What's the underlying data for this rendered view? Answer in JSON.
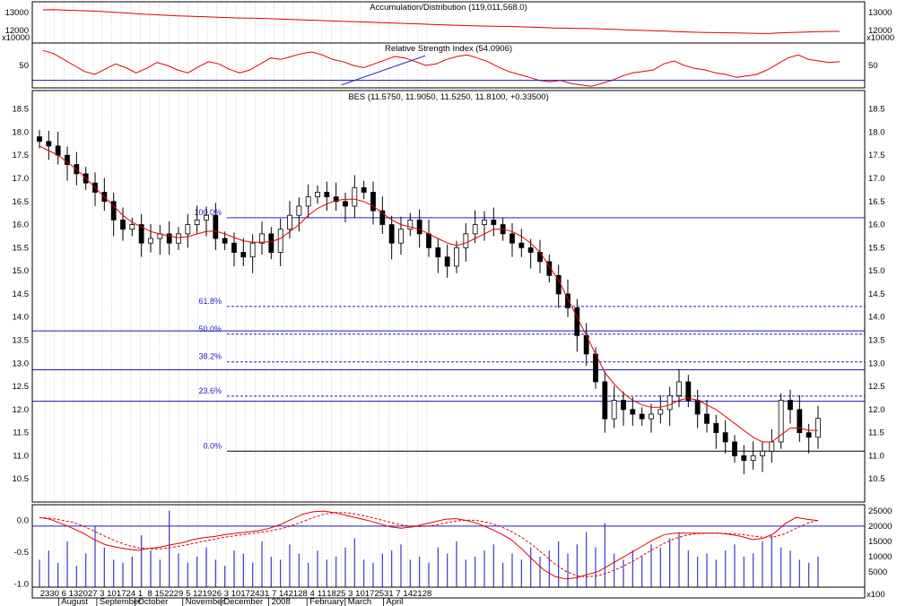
{
  "chart_data": {
    "type": "candlestick",
    "colors": {
      "grid": "#b0b0b0",
      "border": "#000000",
      "red_line": "#e00000",
      "blue_line": "#1a1ab0",
      "fib_blue": "#2020c0",
      "candle_up_fill": "#ffffff",
      "candle_down_fill": "#000000"
    },
    "panels": {
      "ad": {
        "title": "Accumulation/Distribution (119,011,568.0)",
        "ticks": [
          13000,
          12000
        ],
        "tick_labels": [
          "13000",
          "12000"
        ],
        "scale_label": "x10000",
        "ylim": [
          11300,
          13600
        ],
        "values": [
          13150,
          13160,
          13140,
          13120,
          13100,
          13080,
          13050,
          13020,
          12980,
          12940,
          12900,
          12880,
          12850,
          12820,
          12800,
          12780,
          12760,
          12740,
          12720,
          12700,
          12690,
          12680,
          12660,
          12640,
          12620,
          12600,
          12580,
          12560,
          12540,
          12520,
          12500,
          12480,
          12460,
          12440,
          12420,
          12400,
          12380,
          12360,
          12340,
          12320,
          12300,
          12280,
          12260,
          12250,
          12240,
          12230,
          12220,
          12200,
          12180,
          12160,
          12140,
          12130,
          12120,
          12110,
          12100,
          12080,
          12060,
          12040,
          12020,
          12000,
          11980,
          11960,
          11940,
          11920,
          11900,
          11890,
          11880,
          11870,
          11860,
          11850,
          11840,
          11830,
          11860,
          11880,
          11900,
          11920,
          11940,
          11950,
          11950
        ]
      },
      "rsi": {
        "title": "Relative Strength Index (54.0906)",
        "ticks": [
          50
        ],
        "tick_labels": [
          "50"
        ],
        "ylim": [
          20,
          80
        ],
        "level_line": 30,
        "trend_line": {
          "from_week": "Mar 3",
          "to_week": "Apr 28",
          "from_value": 24,
          "to_value": 63
        },
        "values": [
          70,
          66,
          58,
          50,
          42,
          38,
          45,
          52,
          47,
          40,
          46,
          54,
          50,
          44,
          40,
          48,
          55,
          52,
          45,
          40,
          44,
          52,
          60,
          58,
          62,
          66,
          68,
          64,
          58,
          55,
          50,
          47,
          52,
          57,
          62,
          60,
          55,
          50,
          52,
          58,
          62,
          64,
          60,
          55,
          48,
          42,
          38,
          34,
          30,
          28,
          30,
          26,
          24,
          22,
          26,
          30,
          36,
          40,
          42,
          44,
          52,
          56,
          50,
          46,
          44,
          40,
          38,
          34,
          36,
          38,
          44,
          52,
          60,
          64,
          58,
          56,
          54,
          55
        ]
      },
      "price": {
        "title": "BES (11.5750, 11.9050, 11.5250, 11.8100, +0.33500)",
        "ticks": [
          10.5,
          11.0,
          11.5,
          12.0,
          12.5,
          13.0,
          13.5,
          14.0,
          14.5,
          15.0,
          15.5,
          16.0,
          16.5,
          17.0,
          17.5,
          18.0,
          18.5
        ],
        "tick_labels": [
          "10.5",
          "11.0",
          "11.5",
          "12.0",
          "12.5",
          "13.0",
          "13.5",
          "14.0",
          "14.5",
          "15.0",
          "15.5",
          "16.0",
          "16.5",
          "17.0",
          "17.5",
          "18.0",
          "18.5"
        ],
        "ylim": [
          10.0,
          18.9
        ],
        "horizontal_levels": [
          12.18,
          12.86,
          13.7
        ],
        "fibonacci": {
          "start_week": "Dec 10",
          "high": 16.15,
          "low": 11.1,
          "levels": [
            {
              "label": "100.0%",
              "value": 16.15
            },
            {
              "label": "61.8%",
              "value": 14.23
            },
            {
              "label": "50.0%",
              "value": 13.63
            },
            {
              "label": "38.2%",
              "value": 13.03
            },
            {
              "label": "23.6%",
              "value": 12.29
            },
            {
              "label": "0.0%",
              "value": 11.1
            }
          ]
        },
        "close": [
          17.8,
          17.7,
          17.5,
          17.3,
          17.1,
          16.9,
          16.7,
          16.5,
          16.1,
          15.9,
          16.0,
          15.6,
          15.7,
          15.8,
          15.6,
          15.8,
          16.0,
          16.1,
          16.2,
          15.7,
          15.6,
          15.4,
          15.3,
          15.6,
          15.8,
          15.4,
          15.9,
          16.2,
          16.4,
          16.6,
          16.7,
          16.6,
          16.5,
          16.4,
          16.8,
          16.7,
          16.3,
          16.0,
          15.6,
          15.9,
          16.1,
          15.8,
          15.5,
          15.3,
          15.1,
          15.5,
          15.8,
          16.0,
          16.1,
          16.0,
          15.8,
          15.6,
          15.5,
          15.4,
          15.2,
          14.9,
          14.5,
          14.2,
          13.6,
          13.2,
          12.6,
          11.8,
          12.2,
          12.0,
          11.9,
          11.8,
          11.9,
          12.0,
          12.3,
          12.6,
          12.2,
          11.9,
          11.7,
          11.5,
          11.3,
          11.0,
          10.9,
          11.0,
          11.1,
          11.3,
          12.2,
          12.0,
          11.5,
          11.4,
          11.81
        ],
        "ma": [
          17.7,
          17.6,
          17.5,
          17.35,
          17.2,
          17.0,
          16.8,
          16.6,
          16.4,
          16.2,
          16.05,
          15.95,
          15.85,
          15.8,
          15.75,
          15.72,
          15.74,
          15.8,
          15.85,
          15.86,
          15.8,
          15.72,
          15.65,
          15.62,
          15.62,
          15.63,
          15.7,
          15.85,
          16.0,
          16.2,
          16.35,
          16.45,
          16.52,
          16.55,
          16.55,
          16.5,
          16.4,
          16.25,
          16.1,
          16.0,
          15.95,
          15.9,
          15.8,
          15.7,
          15.6,
          15.55,
          15.6,
          15.7,
          15.8,
          15.9,
          15.9,
          15.85,
          15.75,
          15.6,
          15.4,
          15.1,
          14.8,
          14.4,
          14.0,
          13.6,
          13.2,
          12.8,
          12.55,
          12.35,
          12.2,
          12.1,
          12.05,
          12.05,
          12.1,
          12.2,
          12.25,
          12.2,
          12.1,
          12.0,
          11.85,
          11.7,
          11.55,
          11.4,
          11.3,
          11.3,
          11.45,
          11.6,
          11.6,
          11.55,
          11.55
        ]
      },
      "volume": {
        "left_ticks": [
          0.0,
          -0.5,
          -1.0
        ],
        "left_labels": [
          "0.0",
          "-0.5",
          "-1.0"
        ],
        "right_ticks": [
          25000,
          20000,
          15000,
          10000,
          5000
        ],
        "right_labels": [
          "25000",
          "20000",
          "15000",
          "10000",
          "5000"
        ],
        "scale_label": "x100",
        "ylim": [
          0,
          27000
        ],
        "level_line": 20000,
        "bars": [
          9000,
          12000,
          8000,
          15000,
          7000,
          11000,
          20000,
          13000,
          9000,
          8000,
          10000,
          17000,
          12000,
          9000,
          25000,
          11000,
          8000,
          10000,
          13000,
          9000,
          7000,
          12000,
          11000,
          8000,
          15000,
          10000,
          9000,
          14000,
          11000,
          8000,
          12000,
          9000,
          10000,
          13000,
          16000,
          9000,
          8000,
          11000,
          12000,
          14000,
          9000,
          10000,
          8000,
          13000,
          11000,
          15000,
          9000,
          10000,
          12000,
          14000,
          8000,
          11000,
          9000,
          13000,
          10000,
          12000,
          15000,
          11000,
          14000,
          18000,
          13000,
          21000,
          11000,
          9000,
          12000,
          10000,
          14000,
          13000,
          16000,
          18000,
          12000,
          10000,
          11000,
          9000,
          12000,
          14000,
          10000,
          11000,
          15000,
          17000,
          13000,
          12000,
          9000,
          8000,
          10000
        ],
        "macd": [
          0.05,
          0.02,
          -0.05,
          -0.12,
          -0.2,
          -0.3,
          -0.38,
          -0.42,
          -0.45,
          -0.47,
          -0.44,
          -0.42,
          -0.38,
          -0.35,
          -0.3,
          -0.27,
          -0.25,
          -0.22,
          -0.2,
          -0.18,
          -0.16,
          -0.12,
          -0.06,
          0.02,
          0.1,
          0.14,
          0.15,
          0.12,
          0.08,
          0.04,
          0.0,
          -0.05,
          -0.1,
          -0.12,
          -0.1,
          -0.06,
          -0.02,
          0.02,
          0.03,
          0.0,
          -0.05,
          -0.12,
          -0.2,
          -0.3,
          -0.45,
          -0.62,
          -0.78,
          -0.88,
          -0.92,
          -0.9,
          -0.85,
          -0.8,
          -0.7,
          -0.6,
          -0.5,
          -0.4,
          -0.3,
          -0.22,
          -0.2,
          -0.2,
          -0.2,
          -0.2,
          -0.2,
          -0.22,
          -0.25,
          -0.3,
          -0.28,
          -0.2,
          -0.05,
          0.05,
          0.02,
          0.0
        ]
      }
    },
    "x_axis": {
      "day_labels": [
        "23",
        "30",
        "6",
        "13",
        "20",
        "27",
        "3",
        "10",
        "17",
        "24",
        "1",
        "8",
        "15",
        "22",
        "29",
        "5",
        "12",
        "19",
        "26",
        "3",
        "10",
        "17",
        "24",
        "31",
        "7",
        "14",
        "21",
        "28",
        "4",
        "11",
        "18",
        "25",
        "3",
        "10",
        "17",
        "25",
        "31",
        "7",
        "14",
        "21",
        "28"
      ],
      "months": [
        {
          "label": "August",
          "at": 2
        },
        {
          "label": "September",
          "at": 6
        },
        {
          "label": "October",
          "at": 10
        },
        {
          "label": "November",
          "at": 15
        },
        {
          "label": "December",
          "at": 19
        },
        {
          "label": "2008",
          "at": 24
        },
        {
          "label": "February",
          "at": 28
        },
        {
          "label": "March",
          "at": 32
        },
        {
          "label": "April",
          "at": 36
        }
      ]
    }
  }
}
